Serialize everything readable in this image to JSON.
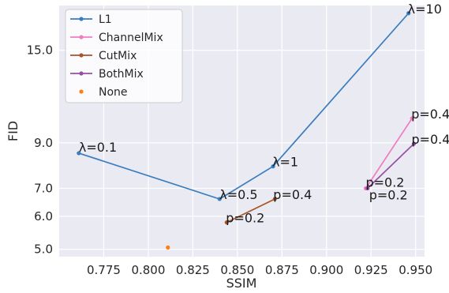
{
  "chart_data": {
    "type": "line",
    "title": "",
    "xlabel": "SSIM",
    "ylabel": "FID",
    "y_scale": "log",
    "xlim": [
      0.75,
      0.955
    ],
    "ylim": [
      4.8,
      19.2
    ],
    "xticks": [
      0.775,
      0.8,
      0.825,
      0.85,
      0.875,
      0.9,
      0.925,
      0.95
    ],
    "xtick_labels": [
      "0.775",
      "0.800",
      "0.825",
      "0.850",
      "0.875",
      "0.900",
      "0.925",
      "0.950"
    ],
    "yticks": [
      5.0,
      6.0,
      7.0,
      9.0,
      15.0
    ],
    "ytick_labels": [
      "5.0",
      "6.0",
      "7.0",
      "9.0",
      "15.0"
    ],
    "grid": true,
    "legend_position": "top-left",
    "series": [
      {
        "name": "L1",
        "color": "#3a7dbf",
        "x": [
          0.761,
          0.84,
          0.87,
          0.946
        ],
        "y": [
          8.5,
          6.6,
          7.9,
          18.4
        ],
        "labels": [
          "λ=0.1",
          "λ=0.5",
          "λ=1",
          "λ=10"
        ]
      },
      {
        "name": "ChannelMix",
        "color": "#f07cc3",
        "x": [
          0.922,
          0.948
        ],
        "y": [
          7.0,
          10.3
        ],
        "labels": [
          "p=0.2",
          "p=0.4"
        ]
      },
      {
        "name": "CutMix",
        "color": "#a65628",
        "x": [
          0.844,
          0.871
        ],
        "y": [
          5.8,
          6.6
        ],
        "labels": [
          "p=0.2",
          "p=0.4"
        ]
      },
      {
        "name": "BothMix",
        "color": "#984ea3",
        "x": [
          0.923,
          0.949
        ],
        "y": [
          7.0,
          8.95
        ],
        "labels": [
          "p=0.2",
          "p=0.4"
        ]
      },
      {
        "name": "None",
        "color": "#ff7f0e",
        "x": [
          0.811
        ],
        "y": [
          5.05
        ],
        "labels": [
          ""
        ],
        "marker_only": true
      }
    ]
  }
}
